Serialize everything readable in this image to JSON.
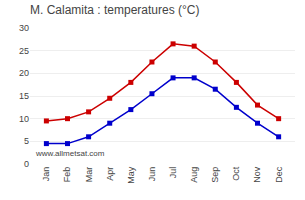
{
  "chart_data": {
    "type": "line",
    "title": "M. Calamita : temperatures (°C)",
    "categories": [
      "Jan",
      "Feb",
      "Mar",
      "Apr",
      "May",
      "Jun",
      "Jul",
      "Aug",
      "Sep",
      "Oct",
      "Nov",
      "Dec"
    ],
    "series": [
      {
        "color": "#cc0000",
        "values": [
          9.5,
          10.0,
          11.5,
          14.5,
          18.0,
          22.5,
          26.5,
          26.0,
          22.5,
          18.0,
          13.0,
          10.0
        ]
      },
      {
        "color": "#0000cc",
        "values": [
          4.5,
          4.5,
          6.0,
          9.0,
          12.0,
          15.5,
          19.0,
          19.0,
          16.5,
          12.5,
          9.0,
          6.0
        ]
      }
    ],
    "ylim": [
      0,
      30
    ],
    "yticks": [
      0,
      5,
      10,
      15,
      20,
      25,
      30
    ],
    "grid": true,
    "marker": "square",
    "annotations": [
      "www.allmetsat.com"
    ]
  }
}
